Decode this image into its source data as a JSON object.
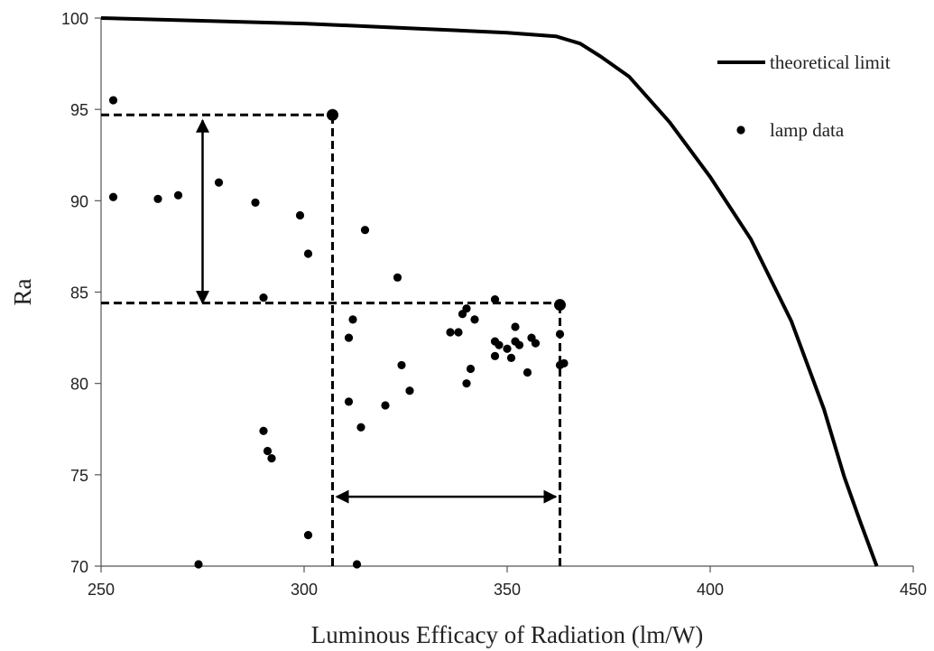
{
  "chart_data": {
    "type": "scatter",
    "title": "",
    "xlabel": "Luminous Efficacy of Radiation (lm/W)",
    "ylabel": "Ra",
    "xlim": [
      250,
      450
    ],
    "ylim": [
      70,
      100
    ],
    "xticks": [
      250,
      300,
      350,
      400,
      450
    ],
    "yticks": [
      70,
      75,
      80,
      85,
      90,
      95,
      100
    ],
    "grid": false,
    "legend_position": "top-right",
    "series": [
      {
        "name": "theoretical limit",
        "kind": "line",
        "color": "#000000",
        "x": [
          250,
          300,
          330,
          350,
          362,
          368,
          373,
          380,
          390,
          400,
          410,
          420,
          428,
          433,
          437,
          441
        ],
        "y": [
          100,
          99.7,
          99.4,
          99.2,
          99.0,
          98.6,
          97.9,
          96.8,
          94.3,
          91.3,
          87.9,
          83.4,
          78.6,
          74.9,
          72.4,
          70.0
        ]
      },
      {
        "name": "lamp data",
        "kind": "scatter",
        "color": "#000000",
        "x": [
          253,
          253,
          264,
          269,
          274,
          279,
          288,
          290,
          290,
          291,
          292,
          299,
          301,
          301,
          311,
          311,
          312,
          313,
          314,
          315,
          320,
          323,
          324,
          326,
          336,
          338,
          339,
          340,
          340,
          341,
          342,
          347,
          347,
          347,
          348,
          350,
          351,
          352,
          352,
          353,
          355,
          356,
          357,
          363,
          363,
          364
        ],
        "y": [
          95.5,
          90.2,
          90.1,
          90.3,
          70.1,
          91.0,
          89.9,
          84.7,
          77.4,
          76.3,
          75.9,
          89.2,
          87.1,
          71.7,
          82.5,
          79.0,
          83.5,
          70.1,
          77.6,
          88.4,
          78.8,
          85.8,
          81.0,
          79.6,
          82.8,
          82.8,
          83.8,
          84.1,
          80.0,
          80.8,
          83.5,
          84.6,
          82.3,
          81.5,
          82.1,
          81.9,
          81.4,
          83.1,
          82.3,
          82.1,
          80.6,
          82.5,
          82.2,
          82.7,
          81.0,
          81.1
        ]
      }
    ],
    "highlight_points": [
      {
        "x": 307,
        "y": 94.7
      },
      {
        "x": 363,
        "y": 84.3
      }
    ],
    "reference_lines": [
      {
        "type": "horizontal",
        "y": 94.7,
        "x_from": 250,
        "x_to": 307
      },
      {
        "type": "horizontal",
        "y": 84.4,
        "x_from": 250,
        "x_to": 363
      },
      {
        "type": "vertical",
        "x": 307,
        "y_from": 70,
        "y_to": 94.7
      },
      {
        "type": "vertical",
        "x": 363,
        "y_from": 70,
        "y_to": 84.3
      }
    ],
    "arrows": [
      {
        "orientation": "vertical",
        "x": 275,
        "from": 84.4,
        "to": 94.4
      },
      {
        "orientation": "horizontal",
        "y": 73.8,
        "from": 308,
        "to": 362
      }
    ]
  }
}
